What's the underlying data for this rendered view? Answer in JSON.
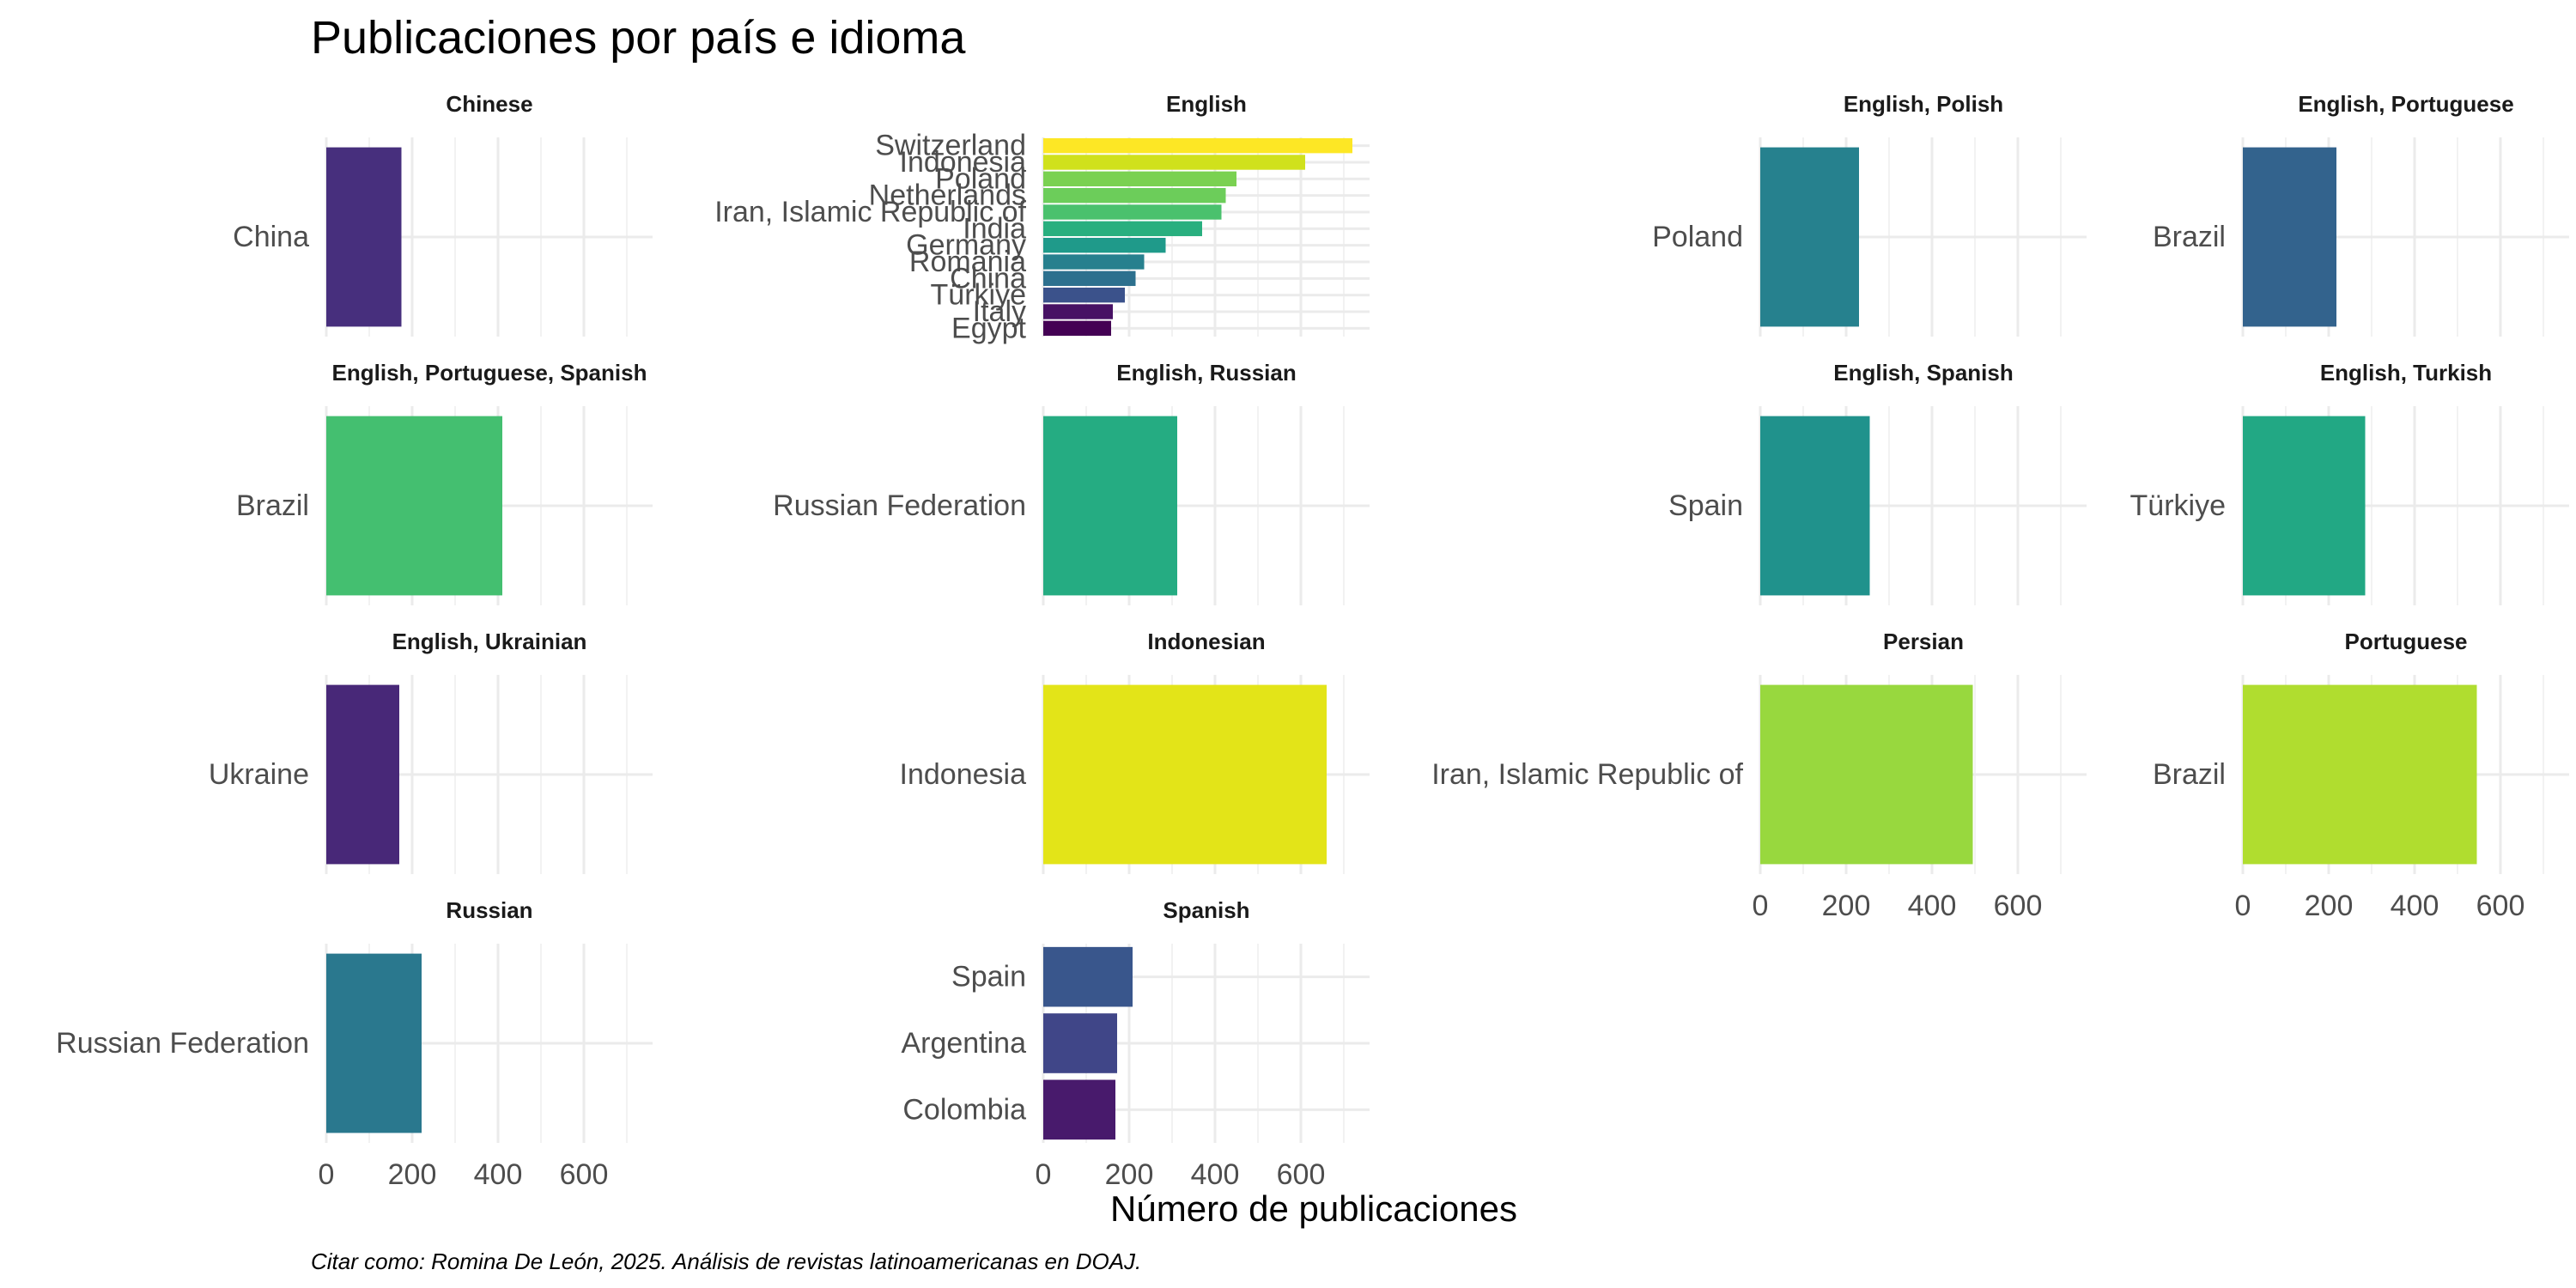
{
  "chart_data": {
    "type": "bar",
    "orientation": "horizontal",
    "title": "Publicaciones por país e idioma",
    "xlabel": "Número de publicaciones",
    "caption": "Citar como: Romina De León, 2025. Análisis de revistas latinoamericanas en DOAJ.",
    "xlim": [
      0,
      760
    ],
    "x_ticks": [
      0,
      200,
      400,
      600
    ],
    "grid": true,
    "legend": "none",
    "facets": [
      {
        "label": "Chinese",
        "categories": [
          "China"
        ],
        "values": [
          175
        ],
        "colors": [
          "#472F7D"
        ]
      },
      {
        "label": "English",
        "categories": [
          "Switzerland",
          "Indonesia",
          "Poland",
          "Netherlands",
          "Iran, Islamic Republic of",
          "India",
          "Germany",
          "Romania",
          "China",
          "Türkiye",
          "Italy",
          "Egypt"
        ],
        "values": [
          720,
          610,
          450,
          425,
          415,
          370,
          285,
          235,
          215,
          190,
          162,
          158
        ],
        "colors": [
          "#FDE725",
          "#D0E11C",
          "#7AD151",
          "#6CCD5A",
          "#4AC16D",
          "#29AF7F",
          "#1F9A8A",
          "#27808E",
          "#2D708E",
          "#3B528B",
          "#471164",
          "#440154"
        ]
      },
      {
        "label": "English, Polish",
        "categories": [
          "Poland"
        ],
        "values": [
          230
        ],
        "colors": [
          "#26818E"
        ]
      },
      {
        "label": "English, Portuguese",
        "categories": [
          "Brazil"
        ],
        "values": [
          218
        ],
        "colors": [
          "#33638D"
        ]
      },
      {
        "label": "English, Portuguese, Spanish",
        "categories": [
          "Brazil"
        ],
        "values": [
          410
        ],
        "colors": [
          "#44BF70"
        ]
      },
      {
        "label": "English, Russian",
        "categories": [
          "Russian Federation"
        ],
        "values": [
          312
        ],
        "colors": [
          "#25AC82"
        ]
      },
      {
        "label": "English, Spanish",
        "categories": [
          "Spain"
        ],
        "values": [
          255
        ],
        "colors": [
          "#20928C"
        ]
      },
      {
        "label": "English, Turkish",
        "categories": [
          "Türkiye"
        ],
        "values": [
          285
        ],
        "colors": [
          "#22A884"
        ]
      },
      {
        "label": "English, Ukrainian",
        "categories": [
          "Ukraine"
        ],
        "values": [
          170
        ],
        "colors": [
          "#482878"
        ]
      },
      {
        "label": "Indonesian",
        "categories": [
          "Indonesia"
        ],
        "values": [
          660
        ],
        "colors": [
          "#E3E418"
        ]
      },
      {
        "label": "Persian",
        "categories": [
          "Iran, Islamic Republic of"
        ],
        "values": [
          495
        ],
        "colors": [
          "#98D83E"
        ]
      },
      {
        "label": "Portuguese",
        "categories": [
          "Brazil"
        ],
        "values": [
          545
        ],
        "colors": [
          "#B0DD2F"
        ]
      },
      {
        "label": "Russian",
        "categories": [
          "Russian Federation"
        ],
        "values": [
          222
        ],
        "colors": [
          "#2A788E"
        ]
      },
      {
        "label": "Spanish",
        "categories": [
          "Spain",
          "Argentina",
          "Colombia"
        ],
        "values": [
          208,
          172,
          168
        ],
        "colors": [
          "#39568C",
          "#404688",
          "#481A6C"
        ]
      }
    ]
  }
}
